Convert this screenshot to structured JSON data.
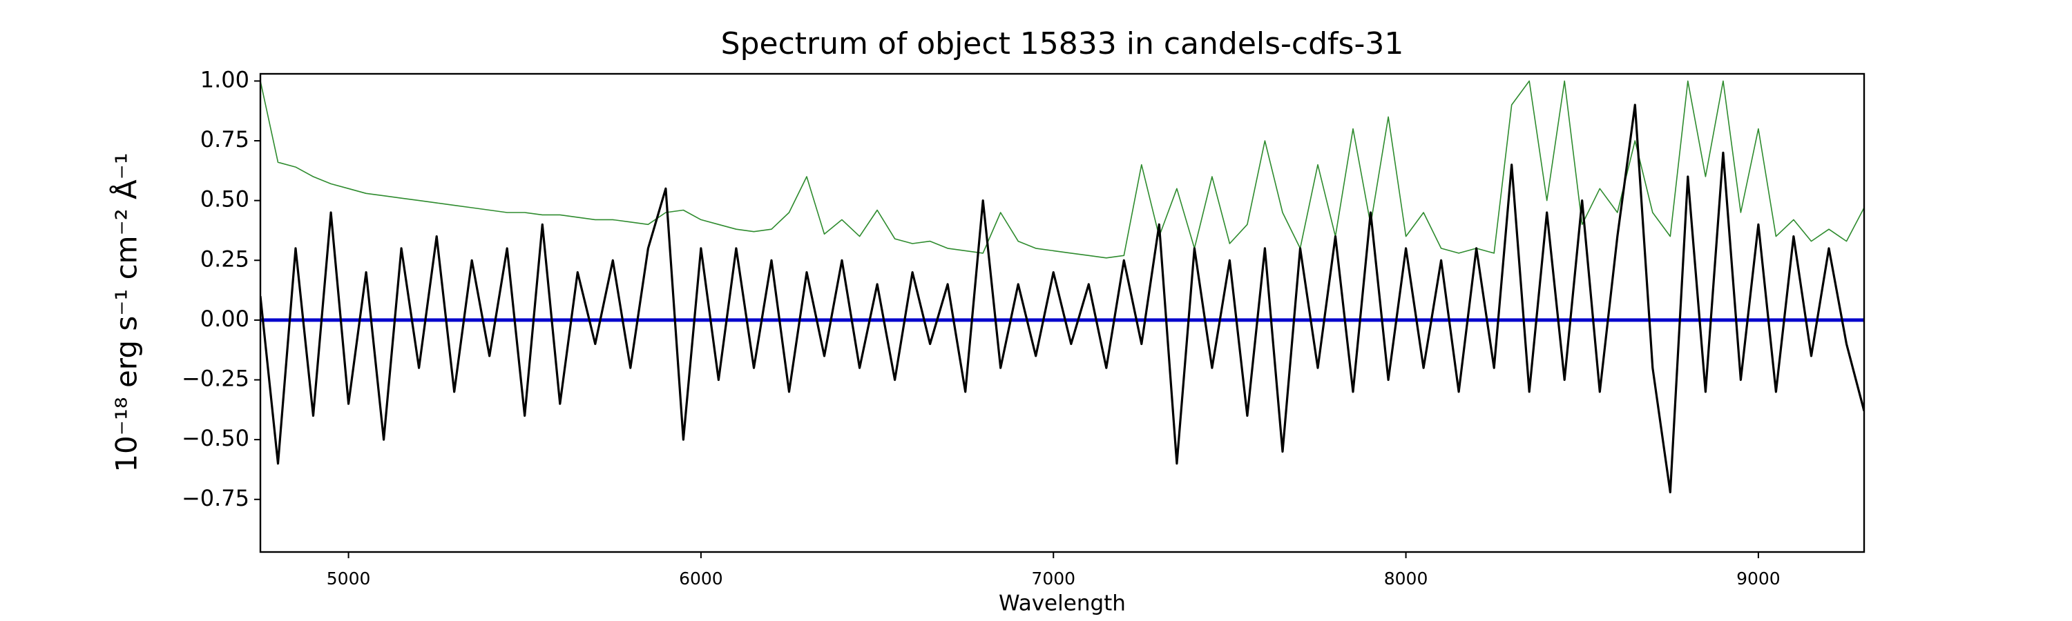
{
  "chart_data": {
    "type": "line",
    "title": "Spectrum of object 15833 in candels-cdfs-31",
    "x_label": "Wavelength",
    "y_label": "10⁻¹⁸ erg s⁻¹ cm⁻² Å⁻¹",
    "x": [
      4750,
      4800,
      4850,
      4900,
      4950,
      5000,
      5050,
      5100,
      5150,
      5200,
      5250,
      5300,
      5350,
      5400,
      5450,
      5500,
      5550,
      5600,
      5650,
      5700,
      5750,
      5800,
      5850,
      5900,
      5950,
      6000,
      6050,
      6100,
      6150,
      6200,
      6250,
      6300,
      6350,
      6400,
      6450,
      6500,
      6550,
      6600,
      6650,
      6700,
      6750,
      6800,
      6850,
      6900,
      6950,
      7000,
      7050,
      7100,
      7150,
      7200,
      7250,
      7300,
      7350,
      7400,
      7450,
      7500,
      7550,
      7600,
      7650,
      7700,
      7750,
      7800,
      7850,
      7900,
      7950,
      8000,
      8050,
      8100,
      8150,
      8200,
      8250,
      8300,
      8350,
      8400,
      8450,
      8500,
      8550,
      8600,
      8650,
      8700,
      8750,
      8800,
      8850,
      8900,
      8950,
      9000,
      9050,
      9100,
      9150,
      9200,
      9250,
      9300
    ],
    "series": [
      {
        "color": "#2e8b2e",
        "width": 1.6,
        "values": [
          1.0,
          0.66,
          0.64,
          0.6,
          0.57,
          0.55,
          0.53,
          0.52,
          0.51,
          0.5,
          0.49,
          0.48,
          0.47,
          0.46,
          0.45,
          0.45,
          0.44,
          0.44,
          0.43,
          0.42,
          0.42,
          0.41,
          0.4,
          0.45,
          0.46,
          0.42,
          0.4,
          0.38,
          0.37,
          0.38,
          0.45,
          0.6,
          0.36,
          0.42,
          0.35,
          0.46,
          0.34,
          0.32,
          0.33,
          0.3,
          0.29,
          0.28,
          0.45,
          0.33,
          0.3,
          0.29,
          0.28,
          0.27,
          0.26,
          0.27,
          0.65,
          0.35,
          0.55,
          0.3,
          0.6,
          0.32,
          0.4,
          0.75,
          0.45,
          0.3,
          0.65,
          0.35,
          0.8,
          0.4,
          0.85,
          0.35,
          0.45,
          0.3,
          0.28,
          0.3,
          0.28,
          0.9,
          1.0,
          0.5,
          1.0,
          0.4,
          0.55,
          0.45,
          0.75,
          0.45,
          0.35,
          1.0,
          0.6,
          1.0,
          0.45,
          0.8,
          0.35,
          0.42,
          0.33,
          0.38,
          0.33,
          0.47
        ]
      },
      {
        "color": "#0000cc",
        "width": 5,
        "values": [
          0,
          0,
          0,
          0,
          0,
          0,
          0,
          0,
          0,
          0,
          0,
          0,
          0,
          0,
          0,
          0,
          0,
          0,
          0,
          0,
          0,
          0,
          0,
          0,
          0,
          0,
          0,
          0,
          0,
          0,
          0,
          0,
          0,
          0,
          0,
          0,
          0,
          0,
          0,
          0,
          0,
          0,
          0,
          0,
          0,
          0,
          0,
          0,
          0,
          0,
          0,
          0,
          0,
          0,
          0,
          0,
          0,
          0,
          0,
          0,
          0,
          0,
          0,
          0,
          0,
          0,
          0,
          0,
          0,
          0,
          0,
          0,
          0,
          0,
          0,
          0,
          0,
          0,
          0,
          0,
          0,
          0,
          0,
          0,
          0,
          0,
          0,
          0,
          0,
          0,
          0,
          0
        ]
      },
      {
        "color": "#000000",
        "width": 3.2,
        "values": [
          0.1,
          -0.6,
          0.3,
          -0.4,
          0.45,
          -0.35,
          0.2,
          -0.5,
          0.3,
          -0.2,
          0.35,
          -0.3,
          0.25,
          -0.15,
          0.3,
          -0.4,
          0.4,
          -0.35,
          0.2,
          -0.1,
          0.25,
          -0.2,
          0.3,
          0.55,
          -0.5,
          0.3,
          -0.25,
          0.3,
          -0.2,
          0.25,
          -0.3,
          0.2,
          -0.15,
          0.25,
          -0.2,
          0.15,
          -0.25,
          0.2,
          -0.1,
          0.15,
          -0.3,
          0.5,
          -0.2,
          0.15,
          -0.15,
          0.2,
          -0.1,
          0.15,
          -0.2,
          0.25,
          -0.1,
          0.4,
          -0.6,
          0.3,
          -0.2,
          0.25,
          -0.4,
          0.3,
          -0.55,
          0.3,
          -0.2,
          0.35,
          -0.3,
          0.45,
          -0.25,
          0.3,
          -0.2,
          0.25,
          -0.3,
          0.3,
          -0.2,
          0.65,
          -0.3,
          0.45,
          -0.25,
          0.5,
          -0.3,
          0.35,
          0.9,
          -0.2,
          -0.72,
          0.6,
          -0.3,
          0.7,
          -0.25,
          0.4,
          -0.3,
          0.35,
          -0.15,
          0.3,
          -0.1,
          -0.38
        ]
      }
    ],
    "xlim": [
      4750,
      9300
    ],
    "ylim": [
      -0.97,
      1.03
    ],
    "xticks": [
      5000,
      6000,
      7000,
      8000,
      9000
    ],
    "yticks": [
      {
        "value": 1.0,
        "label": "1.00"
      },
      {
        "value": 0.75,
        "label": "0.75"
      },
      {
        "value": 0.5,
        "label": "0.50"
      },
      {
        "value": 0.25,
        "label": "0.25"
      },
      {
        "value": 0.0,
        "label": "0.00"
      },
      {
        "value": -0.25,
        "label": "−0.25"
      },
      {
        "value": -0.5,
        "label": "−0.50"
      },
      {
        "value": -0.75,
        "label": "−0.75"
      }
    ],
    "grid": false
  }
}
